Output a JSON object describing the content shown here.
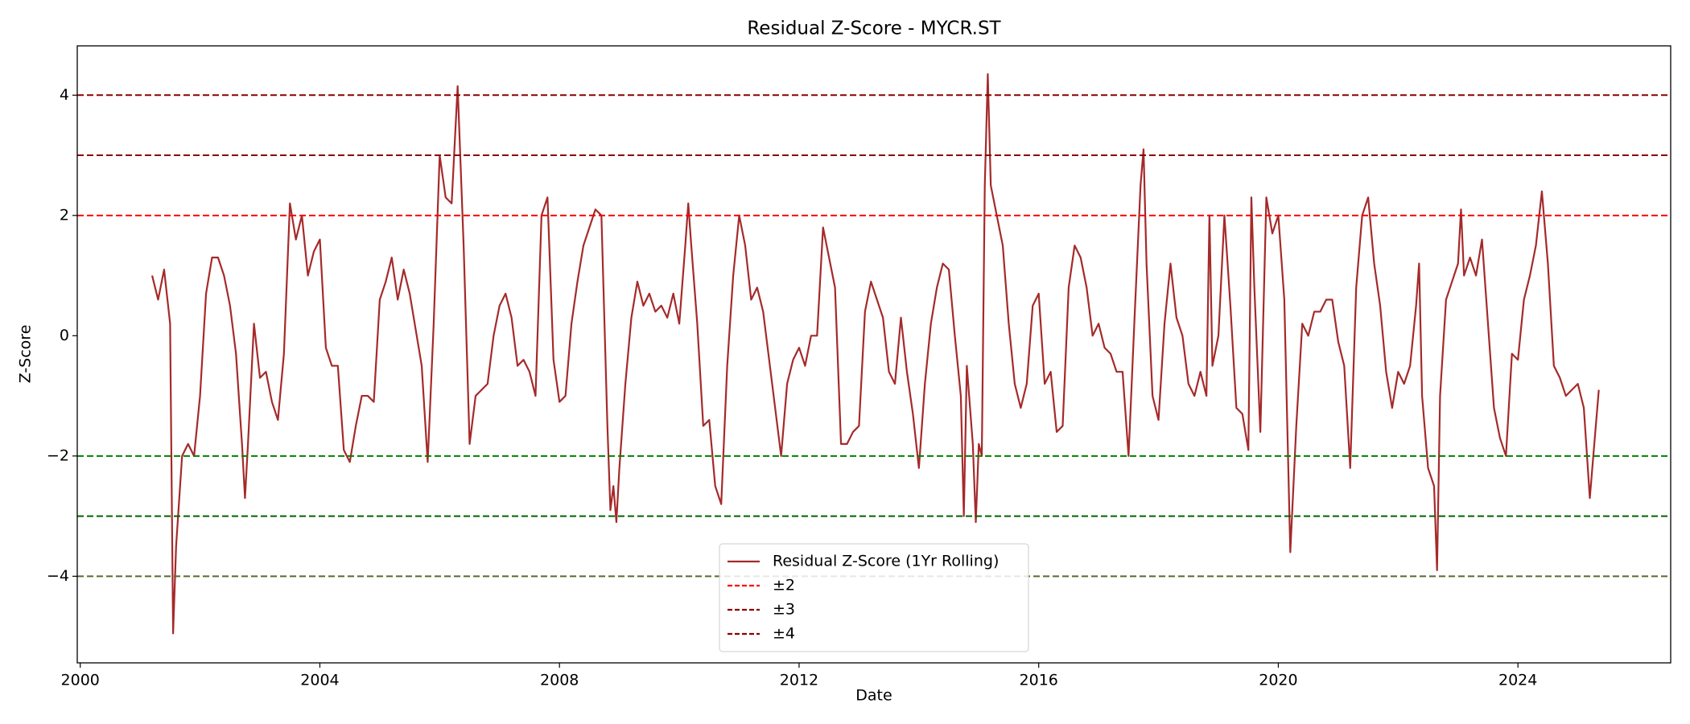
{
  "chart_data": {
    "type": "line",
    "title": "Residual Z-Score - MYCR.ST",
    "xlabel": "Date",
    "ylabel": "Z-Score",
    "xlim": [
      1999.95,
      2026.55
    ],
    "ylim": [
      -5.44,
      4.82
    ],
    "xticks": [
      2000,
      2004,
      2008,
      2012,
      2016,
      2020,
      2024
    ],
    "yticks": [
      {
        "value": -4,
        "label": "−4"
      },
      {
        "value": -2,
        "label": "−2"
      },
      0,
      2,
      4
    ],
    "legend_loc": "lower center",
    "x": [
      2001.2,
      2001.3,
      2001.4,
      2001.5,
      2001.55,
      2001.6,
      2001.7,
      2001.8,
      2001.9,
      2002.0,
      2002.1,
      2002.2,
      2002.3,
      2002.4,
      2002.5,
      2002.6,
      2002.7,
      2002.75,
      2002.8,
      2002.9,
      2003.0,
      2003.1,
      2003.2,
      2003.3,
      2003.4,
      2003.5,
      2003.6,
      2003.7,
      2003.8,
      2003.9,
      2004.0,
      2004.1,
      2004.2,
      2004.3,
      2004.4,
      2004.5,
      2004.6,
      2004.7,
      2004.8,
      2004.9,
      2005.0,
      2005.1,
      2005.2,
      2005.3,
      2005.4,
      2005.5,
      2005.6,
      2005.7,
      2005.8,
      2005.9,
      2006.0,
      2006.1,
      2006.2,
      2006.3,
      2006.4,
      2006.5,
      2006.6,
      2006.7,
      2006.8,
      2006.9,
      2007.0,
      2007.1,
      2007.2,
      2007.3,
      2007.4,
      2007.5,
      2007.6,
      2007.7,
      2007.8,
      2007.9,
      2008.0,
      2008.1,
      2008.2,
      2008.3,
      2008.4,
      2008.5,
      2008.6,
      2008.7,
      2008.8,
      2008.85,
      2008.9,
      2008.95,
      2009.0,
      2009.1,
      2009.2,
      2009.3,
      2009.4,
      2009.5,
      2009.6,
      2009.7,
      2009.8,
      2009.9,
      2010.0,
      2010.1,
      2010.15,
      2010.2,
      2010.3,
      2010.4,
      2010.5,
      2010.6,
      2010.7,
      2010.8,
      2010.9,
      2011.0,
      2011.1,
      2011.2,
      2011.3,
      2011.4,
      2011.5,
      2011.6,
      2011.7,
      2011.8,
      2011.9,
      2012.0,
      2012.1,
      2012.2,
      2012.3,
      2012.4,
      2012.5,
      2012.6,
      2012.7,
      2012.8,
      2012.9,
      2013.0,
      2013.1,
      2013.2,
      2013.3,
      2013.4,
      2013.5,
      2013.6,
      2013.7,
      2013.8,
      2013.9,
      2014.0,
      2014.1,
      2014.2,
      2014.3,
      2014.4,
      2014.5,
      2014.6,
      2014.7,
      2014.75,
      2014.8,
      2014.9,
      2014.95,
      2015.0,
      2015.05,
      2015.1,
      2015.15,
      2015.2,
      2015.3,
      2015.4,
      2015.5,
      2015.6,
      2015.7,
      2015.8,
      2015.9,
      2016.0,
      2016.1,
      2016.2,
      2016.3,
      2016.4,
      2016.5,
      2016.6,
      2016.7,
      2016.8,
      2016.9,
      2017.0,
      2017.1,
      2017.2,
      2017.3,
      2017.4,
      2017.5,
      2017.6,
      2017.7,
      2017.75,
      2017.8,
      2017.9,
      2018.0,
      2018.1,
      2018.2,
      2018.3,
      2018.4,
      2018.5,
      2018.6,
      2018.7,
      2018.8,
      2018.85,
      2018.9,
      2019.0,
      2019.1,
      2019.2,
      2019.3,
      2019.4,
      2019.5,
      2019.55,
      2019.6,
      2019.7,
      2019.8,
      2019.9,
      2020.0,
      2020.1,
      2020.2,
      2020.3,
      2020.4,
      2020.5,
      2020.6,
      2020.7,
      2020.8,
      2020.9,
      2021.0,
      2021.1,
      2021.2,
      2021.3,
      2021.4,
      2021.5,
      2021.6,
      2021.7,
      2021.8,
      2021.9,
      2022.0,
      2022.1,
      2022.2,
      2022.3,
      2022.35,
      2022.4,
      2022.5,
      2022.6,
      2022.65,
      2022.7,
      2022.8,
      2022.9,
      2023.0,
      2023.05,
      2023.1,
      2023.2,
      2023.3,
      2023.4,
      2023.5,
      2023.6,
      2023.7,
      2023.8,
      2023.9,
      2024.0,
      2024.1,
      2024.2,
      2024.3,
      2024.4,
      2024.5,
      2024.6,
      2024.7,
      2024.8,
      2024.9,
      2025.0,
      2025.1,
      2025.2,
      2025.3,
      2025.35
    ],
    "series": [
      {
        "name": "Residual Z-Score (1Yr Rolling)",
        "color": "#a52a2a",
        "values": [
          1.0,
          0.6,
          1.1,
          0.2,
          -4.95,
          -3.5,
          -2.0,
          -1.8,
          -2.0,
          -1.0,
          0.7,
          1.3,
          1.3,
          1.0,
          0.5,
          -0.3,
          -1.8,
          -2.7,
          -1.8,
          0.2,
          -0.7,
          -0.6,
          -1.1,
          -1.4,
          -0.3,
          2.2,
          1.6,
          2.0,
          1.0,
          1.4,
          1.6,
          -0.2,
          -0.5,
          -0.5,
          -1.9,
          -2.1,
          -1.5,
          -1.0,
          -1.0,
          -1.1,
          0.6,
          0.9,
          1.3,
          0.6,
          1.1,
          0.7,
          0.1,
          -0.5,
          -2.1,
          0.2,
          3.0,
          2.3,
          2.2,
          4.15,
          1.5,
          -1.8,
          -1.0,
          -0.9,
          -0.8,
          0.0,
          0.5,
          0.7,
          0.3,
          -0.5,
          -0.4,
          -0.6,
          -1.0,
          2.0,
          2.3,
          -0.4,
          -1.1,
          -1.0,
          0.2,
          0.9,
          1.5,
          1.8,
          2.1,
          2.0,
          -1.5,
          -2.9,
          -2.5,
          -3.1,
          -2.2,
          -0.8,
          0.3,
          0.9,
          0.5,
          0.7,
          0.4,
          0.5,
          0.3,
          0.7,
          0.2,
          1.5,
          2.2,
          1.5,
          0.2,
          -1.5,
          -1.4,
          -2.5,
          -2.8,
          -0.5,
          1.0,
          2.0,
          1.5,
          0.6,
          0.8,
          0.4,
          -0.4,
          -1.2,
          -2.0,
          -0.8,
          -0.4,
          -0.2,
          -0.5,
          0.0,
          0.0,
          1.8,
          1.3,
          0.8,
          -1.8,
          -1.8,
          -1.6,
          -1.5,
          0.4,
          0.9,
          0.6,
          0.3,
          -0.6,
          -0.8,
          0.3,
          -0.6,
          -1.3,
          -2.2,
          -0.8,
          0.2,
          0.8,
          1.2,
          1.1,
          0.0,
          -1.0,
          -3.0,
          -0.5,
          -1.8,
          -3.1,
          -1.8,
          -2.0,
          2.5,
          4.35,
          2.5,
          2.0,
          1.5,
          0.2,
          -0.8,
          -1.2,
          -0.8,
          0.5,
          0.7,
          -0.8,
          -0.6,
          -1.6,
          -1.5,
          0.8,
          1.5,
          1.3,
          0.8,
          0.0,
          0.2,
          -0.2,
          -0.3,
          -0.6,
          -0.6,
          -2.0,
          0.3,
          2.5,
          3.1,
          1.2,
          -1.0,
          -1.4,
          0.2,
          1.2,
          0.3,
          0.0,
          -0.8,
          -1.0,
          -0.6,
          -1.0,
          2.0,
          -0.5,
          0.0,
          2.0,
          0.5,
          -1.2,
          -1.3,
          -1.9,
          2.3,
          0.8,
          -1.6,
          2.3,
          1.7,
          2.0,
          0.6,
          -3.6,
          -1.5,
          0.2,
          0.0,
          0.4,
          0.4,
          0.6,
          0.6,
          -0.1,
          -0.5,
          -2.2,
          0.8,
          2.0,
          2.3,
          1.2,
          0.5,
          -0.6,
          -1.2,
          -0.6,
          -0.8,
          -0.5,
          0.5,
          1.2,
          -1.0,
          -2.2,
          -2.5,
          -3.9,
          -1.0,
          0.6,
          0.9,
          1.2,
          2.1,
          1.0,
          1.3,
          1.0,
          1.6,
          0.2,
          -1.2,
          -1.7,
          -2.0,
          -0.3,
          -0.4,
          0.6,
          1.0,
          1.5,
          2.4,
          1.2,
          -0.5,
          -0.7,
          -1.0,
          -0.9,
          -0.8,
          -1.2,
          -2.7,
          -1.5,
          -0.9
        ]
      }
    ],
    "reference_lines": [
      {
        "name": "±2",
        "values": [
          2,
          -2
        ],
        "colors": [
          "#ff0000",
          "#008000"
        ]
      },
      {
        "name": "±3",
        "values": [
          3,
          -3
        ],
        "colors": [
          "#8b0000",
          "#006400"
        ]
      },
      {
        "name": "±4",
        "values": [
          4,
          -4
        ],
        "colors": [
          "#8b0000",
          "#556b2f"
        ]
      }
    ]
  }
}
